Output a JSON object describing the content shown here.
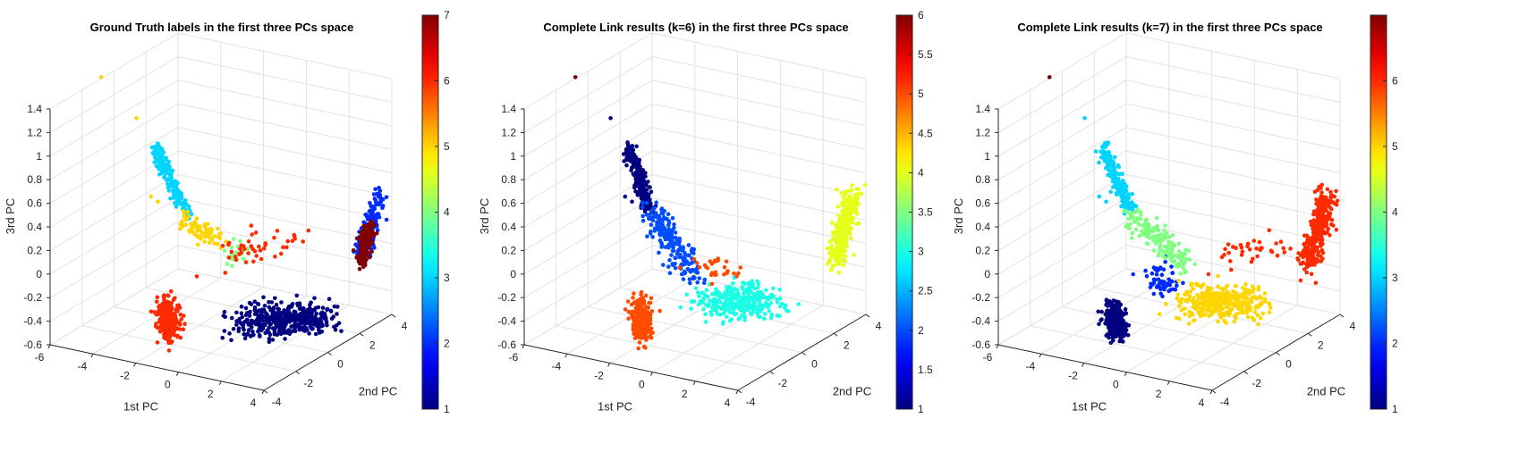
{
  "chart_data": [
    {
      "type": "scatter",
      "projection": "3d",
      "title": "Ground Truth labels in the first three PCs space",
      "xlabel": "1st PC",
      "ylabel": "2nd PC",
      "zlabel": "3rd PC",
      "xlim": [
        -6,
        4
      ],
      "ylim": [
        -4,
        4
      ],
      "zlim": [
        -0.6,
        1.4
      ],
      "xticks": [
        "-6",
        "-4",
        "-2",
        "0",
        "2",
        "4"
      ],
      "yticks": [
        "-4",
        "-2",
        "0",
        "2",
        "4"
      ],
      "zticks": [
        "-0.6",
        "-0.4",
        "-0.2",
        "0",
        "0.2",
        "0.4",
        "0.6",
        "0.8",
        "1",
        "1.2",
        "1.4"
      ],
      "grid": true,
      "colorbar": {
        "colormap": "jet",
        "min": 1,
        "max": 7,
        "ticks": [
          "1",
          "2",
          "3",
          "4",
          "5",
          "6",
          "7"
        ]
      },
      "clusters": [
        {
          "label": 1,
          "count": 420,
          "from": [
            1.4,
            -1.6,
            -0.32
          ],
          "to": [
            3.2,
            0.9,
            -0.4
          ],
          "spread": [
            0.55,
            0.42,
            0.06
          ]
        },
        {
          "label": 2,
          "count": 170,
          "from": [
            3.8,
            2.4,
            0.0
          ],
          "to": [
            3.7,
            3.6,
            0.42
          ],
          "spread": [
            0.16,
            0.18,
            0.05
          ]
        },
        {
          "label": 3,
          "count": 200,
          "from": [
            -3.6,
            -0.7,
            0.92
          ],
          "to": [
            -2.4,
            -0.2,
            0.32
          ],
          "spread": [
            0.12,
            0.12,
            0.02
          ]
        },
        {
          "label": 4,
          "count": 26,
          "from": [
            -1.1,
            0.5,
            0.0
          ],
          "to": [
            -0.6,
            0.9,
            0.0
          ],
          "spread": [
            0.2,
            0.2,
            0.06
          ]
        },
        {
          "label": 5,
          "count": 80,
          "from": [
            -2.6,
            -0.2,
            0.28
          ],
          "to": [
            -1.3,
            0.3,
            0.12
          ],
          "spread": [
            0.18,
            0.18,
            0.04
          ]
        },
        {
          "label": 6,
          "count": 230,
          "from": [
            -1.5,
            -2.8,
            -0.18
          ],
          "to": [
            -1.0,
            -3.2,
            -0.4
          ],
          "spread": [
            0.2,
            0.2,
            0.05
          ]
        },
        {
          "label": 6,
          "count": 45,
          "from": [
            -0.8,
            -0.5,
            0.0
          ],
          "to": [
            0.9,
            2.0,
            0.1
          ],
          "spread": [
            0.5,
            0.5,
            0.05
          ]
        },
        {
          "label": 7,
          "count": 150,
          "from": [
            3.8,
            2.4,
            -0.02
          ],
          "to": [
            3.7,
            3.0,
            0.2
          ],
          "spread": [
            0.12,
            0.14,
            0.05
          ]
        }
      ],
      "outliers": [
        {
          "x": -5.4,
          "y": -1.6,
          "z": 1.5,
          "label": 5
        },
        {
          "x": -4.2,
          "y": -1.0,
          "z": 1.15,
          "label": 5
        },
        {
          "x": -3.6,
          "y": -0.9,
          "z": 0.5,
          "label": 5
        },
        {
          "x": -3.2,
          "y": -1.0,
          "z": 0.48,
          "label": 5
        }
      ]
    },
    {
      "type": "scatter",
      "projection": "3d",
      "title": "Complete Link results (k=6) in the first three PCs space",
      "xlabel": "1st PC",
      "ylabel": "2nd PC",
      "zlabel": "3rd PC",
      "xlim": [
        -6,
        4
      ],
      "ylim": [
        -4,
        4
      ],
      "zlim": [
        -0.6,
        1.4
      ],
      "xticks": [
        "-6",
        "-4",
        "-2",
        "0",
        "2",
        "4"
      ],
      "yticks": [
        "-4",
        "-2",
        "0",
        "2",
        "4"
      ],
      "zticks": [
        "-0.6",
        "-0.4",
        "-0.2",
        "0",
        "0.2",
        "0.4",
        "0.6",
        "0.8",
        "1",
        "1.2",
        "1.4"
      ],
      "grid": true,
      "colorbar": {
        "colormap": "jet",
        "min": 1,
        "max": 6,
        "ticks": [
          "1",
          "1.5",
          "2",
          "2.5",
          "3",
          "3.5",
          "4",
          "4.5",
          "5",
          "5.5",
          "6"
        ]
      },
      "clusters": [
        {
          "label": 1,
          "count": 210,
          "from": [
            -3.6,
            -0.7,
            0.92
          ],
          "to": [
            -2.8,
            -0.5,
            0.4
          ],
          "spread": [
            0.12,
            0.12,
            0.02
          ]
        },
        {
          "label": 2,
          "count": 200,
          "from": [
            -2.8,
            -0.5,
            0.4
          ],
          "to": [
            -0.6,
            -0.6,
            -0.08
          ],
          "spread": [
            0.25,
            0.25,
            0.05
          ]
        },
        {
          "label": 3,
          "count": 300,
          "from": [
            0.6,
            -1.2,
            -0.2
          ],
          "to": [
            2.0,
            0.6,
            -0.3
          ],
          "spread": [
            0.5,
            0.4,
            0.06
          ]
        },
        {
          "label": 4,
          "count": 310,
          "from": [
            3.8,
            2.3,
            -0.02
          ],
          "to": [
            3.7,
            3.6,
            0.42
          ],
          "spread": [
            0.18,
            0.2,
            0.06
          ]
        },
        {
          "label": 5,
          "count": 240,
          "from": [
            -1.5,
            -2.8,
            -0.18
          ],
          "to": [
            -1.0,
            -3.2,
            -0.4
          ],
          "spread": [
            0.2,
            0.2,
            0.05
          ]
        },
        {
          "label": 5,
          "count": 30,
          "from": [
            -0.6,
            -0.5,
            0.0
          ],
          "to": [
            0.6,
            0.5,
            -0.1
          ],
          "spread": [
            0.4,
            0.4,
            0.05
          ]
        }
      ],
      "outliers": [
        {
          "x": -5.4,
          "y": -1.6,
          "z": 1.5,
          "label": 6
        },
        {
          "x": -4.2,
          "y": -1.0,
          "z": 1.15,
          "label": 1
        },
        {
          "x": -3.6,
          "y": -0.9,
          "z": 0.5,
          "label": 1
        },
        {
          "x": -3.2,
          "y": -1.0,
          "z": 0.48,
          "label": 1
        }
      ]
    },
    {
      "type": "scatter",
      "projection": "3d",
      "title": "Complete Link results (k=7) in the first three PCs space",
      "xlabel": "1st PC",
      "ylabel": "2nd PC",
      "zlabel": "3rd PC",
      "xlim": [
        -6,
        4
      ],
      "ylim": [
        -4,
        4
      ],
      "zlim": [
        -0.6,
        1.4
      ],
      "xticks": [
        "-6",
        "-4",
        "-2",
        "0",
        "2",
        "4"
      ],
      "yticks": [
        "-4",
        "-2",
        "0",
        "2",
        "4"
      ],
      "zticks": [
        "-0.6",
        "-0.4",
        "-0.2",
        "0",
        "0.2",
        "0.4",
        "0.6",
        "0.8",
        "1",
        "1.2",
        "1.4"
      ],
      "grid": true,
      "colorbar": {
        "colormap": "jet",
        "min": 1,
        "max": 7,
        "ticks": [
          "1",
          "2",
          "3",
          "4",
          "5",
          "6"
        ]
      },
      "clusters": [
        {
          "label": 1,
          "count": 220,
          "from": [
            -1.5,
            -2.8,
            -0.18
          ],
          "to": [
            -1.0,
            -3.2,
            -0.4
          ],
          "spread": [
            0.2,
            0.2,
            0.05
          ]
        },
        {
          "label": 2,
          "count": 60,
          "from": [
            -0.9,
            -0.8,
            -0.02
          ],
          "to": [
            -0.2,
            -1.4,
            -0.12
          ],
          "spread": [
            0.3,
            0.3,
            0.05
          ]
        },
        {
          "label": 3,
          "count": 220,
          "from": [
            -3.6,
            -0.7,
            0.92
          ],
          "to": [
            -2.6,
            -0.3,
            0.35
          ],
          "spread": [
            0.12,
            0.12,
            0.02
          ]
        },
        {
          "label": 4,
          "count": 160,
          "from": [
            -2.6,
            -0.3,
            0.35
          ],
          "to": [
            -0.4,
            0.2,
            -0.05
          ],
          "spread": [
            0.25,
            0.25,
            0.04
          ]
        },
        {
          "label": 5,
          "count": 330,
          "from": [
            0.8,
            -1.0,
            -0.2
          ],
          "to": [
            2.2,
            0.8,
            -0.32
          ],
          "spread": [
            0.55,
            0.45,
            0.06
          ]
        },
        {
          "label": 6,
          "count": 310,
          "from": [
            3.8,
            2.3,
            -0.02
          ],
          "to": [
            3.7,
            3.6,
            0.42
          ],
          "spread": [
            0.18,
            0.2,
            0.06
          ]
        },
        {
          "label": 6,
          "count": 35,
          "from": [
            1.0,
            1.2,
            0.0
          ],
          "to": [
            2.8,
            2.2,
            0.1
          ],
          "spread": [
            0.5,
            0.5,
            0.05
          ]
        }
      ],
      "outliers": [
        {
          "x": -5.4,
          "y": -1.6,
          "z": 1.5,
          "label": 7
        },
        {
          "x": -4.2,
          "y": -1.0,
          "z": 1.15,
          "label": 3
        },
        {
          "x": -3.6,
          "y": -0.9,
          "z": 0.5,
          "label": 3
        },
        {
          "x": -3.2,
          "y": -1.0,
          "z": 0.48,
          "label": 3
        }
      ]
    }
  ]
}
